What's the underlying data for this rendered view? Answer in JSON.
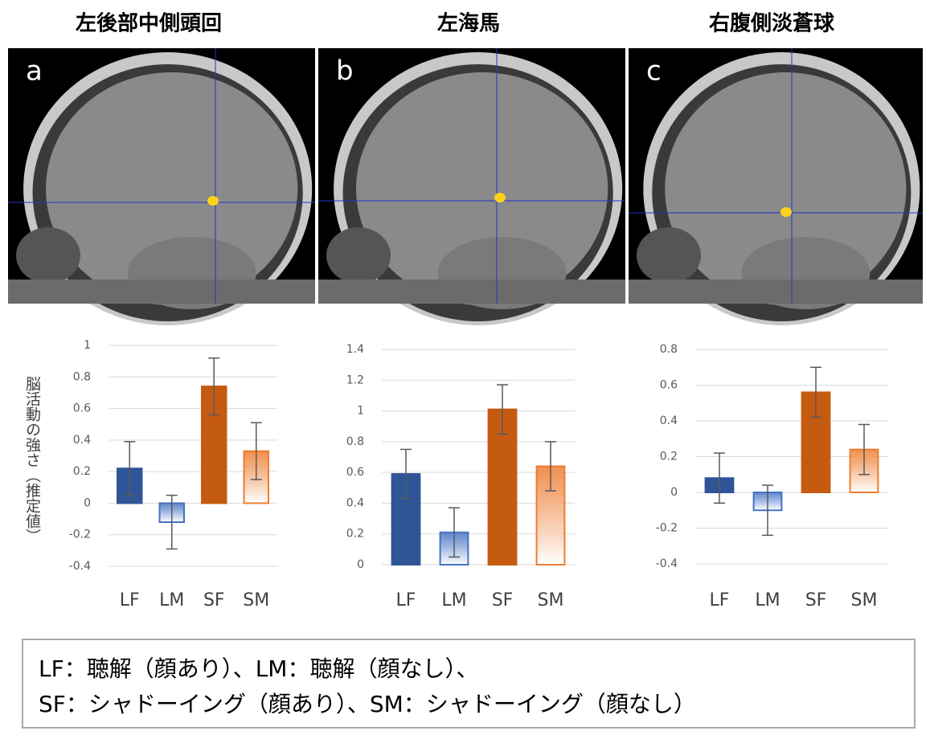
{
  "chart_data": [
    {
      "type": "bar",
      "title": "左後部中側頭回",
      "panel": "a",
      "ylabel": "脳活動の強さ（推定値）",
      "categories": [
        "LF",
        "LM",
        "SF",
        "SM"
      ],
      "values": [
        0.22,
        -0.12,
        0.74,
        0.33
      ],
      "errors": [
        0.17,
        0.17,
        0.18,
        0.18
      ],
      "colors": [
        "#2f5597",
        "#4472c4",
        "#c55a11",
        "#ed7d31"
      ],
      "gradient": [
        false,
        true,
        false,
        true
      ],
      "ylim": [
        -0.4,
        1
      ],
      "yticks": [
        -0.4,
        -0.2,
        0,
        0.2,
        0.4,
        0.6,
        0.8,
        1
      ],
      "grid": true
    },
    {
      "type": "bar",
      "title": "左海馬",
      "panel": "b",
      "categories": [
        "LF",
        "LM",
        "SF",
        "SM"
      ],
      "values": [
        0.59,
        0.21,
        1.01,
        0.64
      ],
      "errors": [
        0.16,
        0.16,
        0.16,
        0.16
      ],
      "colors": [
        "#2f5597",
        "#4472c4",
        "#c55a11",
        "#ed7d31"
      ],
      "gradient": [
        false,
        true,
        false,
        true
      ],
      "ylim": [
        0,
        1.4
      ],
      "yticks": [
        0,
        0.2,
        0.4,
        0.6,
        0.8,
        1,
        1.2,
        1.4
      ],
      "grid": true
    },
    {
      "type": "bar",
      "title": "右腹側淡蒼球",
      "panel": "c",
      "categories": [
        "LF",
        "LM",
        "SF",
        "SM"
      ],
      "values": [
        0.08,
        -0.1,
        0.56,
        0.24
      ],
      "errors": [
        0.14,
        0.14,
        0.14,
        0.14
      ],
      "colors": [
        "#2f5597",
        "#4472c4",
        "#c55a11",
        "#ed7d31"
      ],
      "gradient": [
        false,
        true,
        false,
        true
      ],
      "ylim": [
        -0.4,
        0.8
      ],
      "yticks": [
        -0.4,
        -0.2,
        0,
        0.2,
        0.4,
        0.6,
        0.8
      ],
      "grid": true
    }
  ],
  "note": {
    "lines": [
      "LF：聴解（顔あり）、LM：聴解（顔なし）、",
      "SF：シャドーイング（顔あり）、SM：シャドーイング（顔なし）"
    ]
  }
}
